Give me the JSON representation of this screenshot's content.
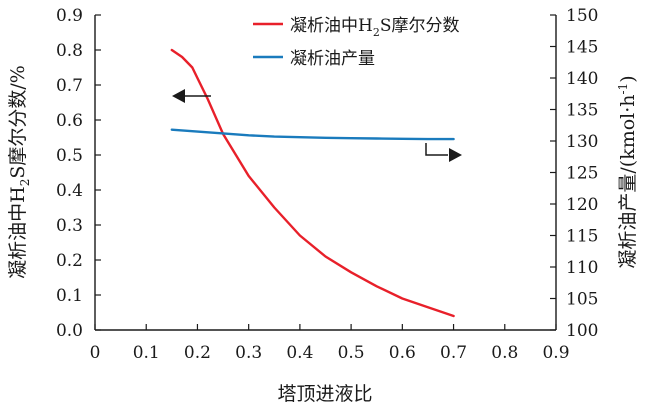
{
  "chart_data": {
    "type": "line",
    "xlabel": "塔顶进液比",
    "ylabel_left_parts": [
      "凝析油中H",
      "2",
      "S摩尔分数/%"
    ],
    "ylabel_right_parts": [
      "凝析油产量/(kmol·h",
      "-1",
      ")"
    ],
    "xlim": [
      0,
      0.9
    ],
    "ylim_left": [
      0,
      0.9
    ],
    "ylim_right": [
      100,
      150
    ],
    "x_ticks": [
      "0",
      "0.1",
      "0.2",
      "0.3",
      "0.4",
      "0.5",
      "0.6",
      "0.7",
      "0.8",
      "0.9"
    ],
    "y_left_ticks": [
      "0.0",
      "0.1",
      "0.2",
      "0.3",
      "0.4",
      "0.5",
      "0.6",
      "0.7",
      "0.8",
      "0.9"
    ],
    "y_right_ticks": [
      "100",
      "105",
      "110",
      "115",
      "120",
      "125",
      "130",
      "135",
      "140",
      "145",
      "150"
    ],
    "grid": false,
    "legend_position": "top-right",
    "series": [
      {
        "name": "凝析油中H2S摩尔分数",
        "legend_parts": [
          "凝析油中H",
          "2",
          "S摩尔分数"
        ],
        "axis": "left",
        "color": "#e8202a",
        "x": [
          0.15,
          0.17,
          0.19,
          0.2,
          0.22,
          0.25,
          0.3,
          0.35,
          0.4,
          0.45,
          0.5,
          0.55,
          0.6,
          0.65,
          0.7
        ],
        "y": [
          0.8,
          0.78,
          0.75,
          0.72,
          0.66,
          0.56,
          0.44,
          0.35,
          0.27,
          0.21,
          0.165,
          0.125,
          0.09,
          0.065,
          0.04
        ]
      },
      {
        "name": "凝析油产量",
        "legend_parts": [
          "凝析油产量",
          "",
          ""
        ],
        "axis": "right",
        "color": "#1a7bbd",
        "x": [
          0.15,
          0.2,
          0.25,
          0.3,
          0.35,
          0.4,
          0.45,
          0.5,
          0.55,
          0.6,
          0.65,
          0.7
        ],
        "y": [
          131.8,
          131.5,
          131.2,
          130.9,
          130.7,
          130.6,
          130.5,
          130.45,
          130.4,
          130.35,
          130.3,
          130.3
        ]
      }
    ]
  }
}
